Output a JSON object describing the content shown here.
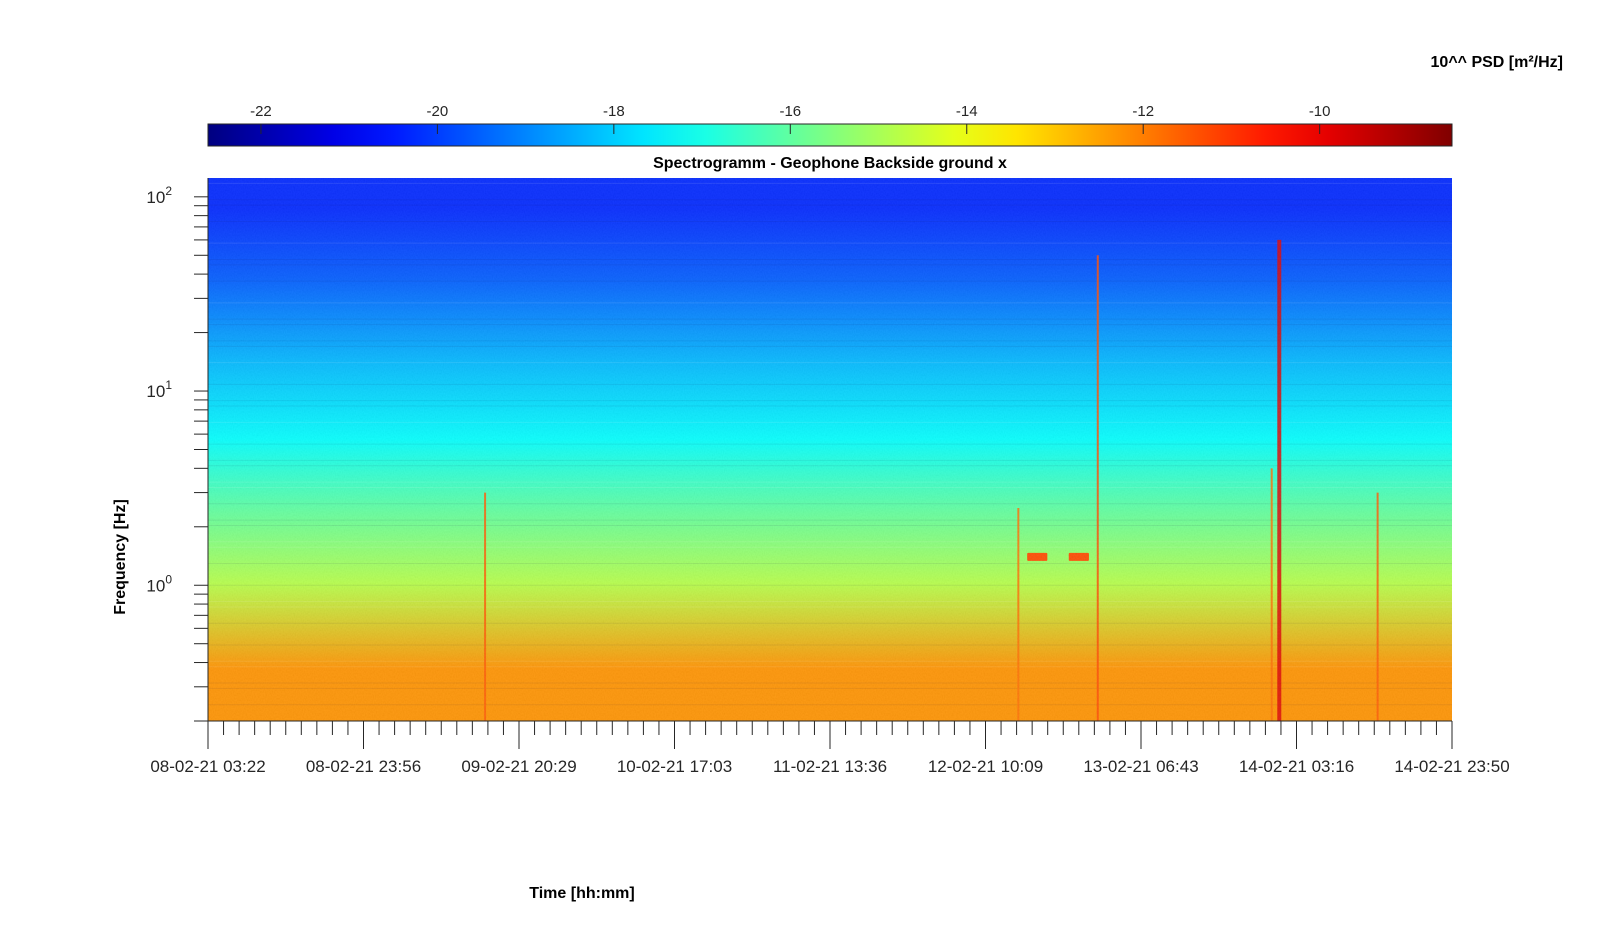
{
  "colorbar": {
    "label": "10^^ PSD [m²/Hz]",
    "range": [
      -22.6,
      -8.5
    ],
    "ticks": [
      -22,
      -20,
      -18,
      -16,
      -14,
      -12,
      -10
    ],
    "tick_labels": [
      "-22",
      "-20",
      "-18",
      "-16",
      "-14",
      "-12",
      "-10"
    ],
    "colormap": "jet",
    "colors": [
      "#00008f",
      "#0000ff",
      "#00ffff",
      "#ffff00",
      "#ff0000",
      "#800000"
    ]
  },
  "chart_data": {
    "type": "heatmap",
    "title": "Spectrogramm - Geophone Backside ground x",
    "xlabel": "Time [hh:mm]",
    "ylabel": "Frequency [Hz]",
    "xlim": [
      "08-02-21 03:22",
      "14-02-21 23:50"
    ],
    "x_tick_labels": [
      "08-02-21 03:22",
      "08-02-21 23:56",
      "09-02-21 20:29",
      "10-02-21 17:03",
      "11-02-21 13:36",
      "12-02-21 10:09",
      "13-02-21 06:43",
      "14-02-21 03:16",
      "14-02-21 23:50"
    ],
    "yscale": "log",
    "ylim": [
      0.2,
      125
    ],
    "y_ticks": [
      1,
      10,
      100
    ],
    "y_tick_labels": [
      "10",
      "10",
      "10"
    ],
    "y_tick_exponents": [
      "0",
      "1",
      "2"
    ],
    "log10_psd_bands": [
      {
        "f_min": 60,
        "f_max": 125,
        "value": -20.3
      },
      {
        "f_min": 25,
        "f_max": 60,
        "value": -19.6
      },
      {
        "f_min": 8,
        "f_max": 25,
        "value": -18.3
      },
      {
        "f_min": 4,
        "f_max": 8,
        "value": -17.3
      },
      {
        "f_min": 1.5,
        "f_max": 4,
        "value": -16.0
      },
      {
        "f_min": 0.7,
        "f_max": 1.5,
        "value": -14.8
      },
      {
        "f_min": 0.2,
        "f_max": 0.7,
        "value": -12.3
      }
    ],
    "events": [
      {
        "time": "09-02-21 16:00",
        "f_max": 3.0,
        "value": -11.5
      },
      {
        "time": "12-02-21 14:30",
        "f_max": 2.5,
        "value": -11.8
      },
      {
        "time": "13-02-21 01:00",
        "f_max": 50,
        "value": -11.3
      },
      {
        "time": "14-02-21 00:00",
        "f_max": 4.0,
        "value": -11.8
      },
      {
        "time": "14-02-21 01:00",
        "f_max": 60,
        "value": -9.8
      },
      {
        "time": "14-02-21 14:00",
        "f_max": 3.0,
        "value": -11.5
      }
    ],
    "patches": [
      {
        "time_start": "12-02-21 15:40",
        "time_end": "12-02-21 18:20",
        "f": 1.4,
        "value": -11.3
      },
      {
        "time_start": "12-02-21 21:10",
        "time_end": "12-02-21 23:50",
        "f": 1.4,
        "value": -11.3
      }
    ]
  }
}
